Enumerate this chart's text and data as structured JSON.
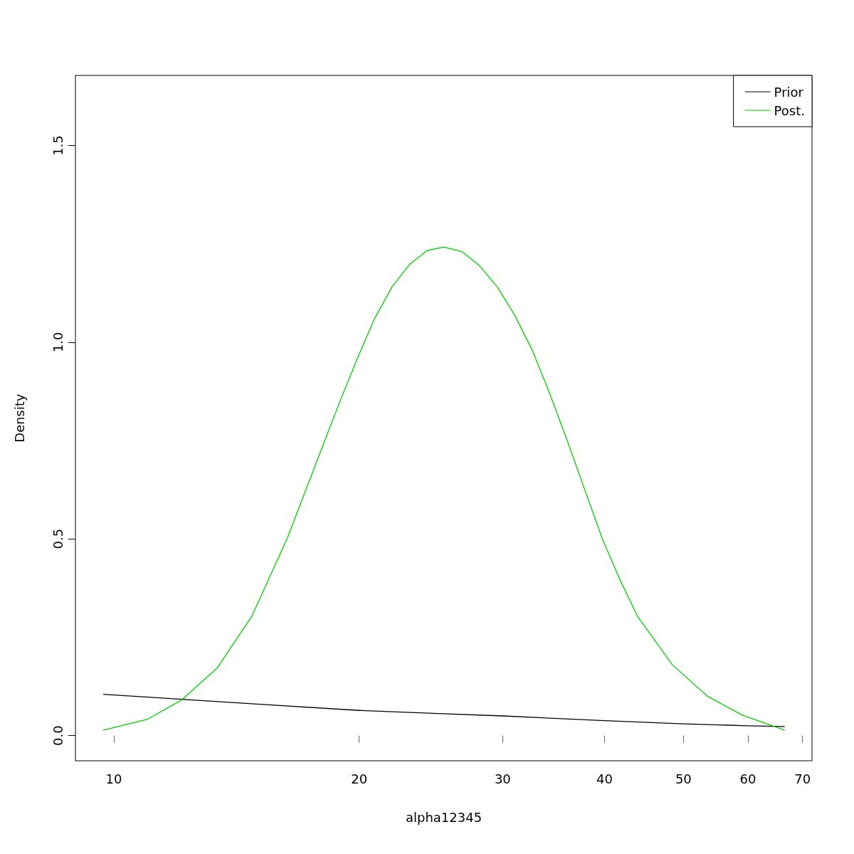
{
  "chart_data": {
    "type": "line",
    "xlabel": "alpha12345",
    "ylabel": "Density",
    "xlim": [
      8.97,
      71.9
    ],
    "xticks": [
      10,
      20,
      30,
      40,
      50,
      60,
      70
    ],
    "ylim": [
      -0.064,
      1.678
    ],
    "yticks": [
      {
        "value": 0,
        "label": "0.0"
      },
      0.5,
      {
        "value": 1,
        "label": "1.0"
      },
      1.5
    ],
    "log": "x",
    "grid": false,
    "legend": "top right",
    "marker": "none",
    "line_style": "solid",
    "series": [
      {
        "name": "Prior",
        "color": "#000000",
        "x": [
          9.71,
          12.4,
          15,
          20,
          25,
          30,
          40,
          50,
          60,
          66.5
        ],
        "values": [
          0.105,
          0.091,
          0.08,
          0.064,
          0.056,
          0.05,
          0.038,
          0.03,
          0.025,
          0.023
        ]
      },
      {
        "name": "Post.",
        "color": "#00cd00",
        "x": [
          9.71,
          10.98,
          12.12,
          13.38,
          14.77,
          16.31,
          17.14,
          18.0,
          18.92,
          19.88,
          20.89,
          21.95,
          23.07,
          24.24,
          25.4,
          26.75,
          28.11,
          29.53,
          31.03,
          32.61,
          34.26,
          36.01,
          37.83,
          39.76,
          41.77,
          43.89,
          48.45,
          53.5,
          59.06,
          66.5
        ],
        "values": [
          0.014,
          0.041,
          0.091,
          0.171,
          0.304,
          0.5,
          0.616,
          0.731,
          0.847,
          0.957,
          1.06,
          1.141,
          1.198,
          1.233,
          1.242,
          1.23,
          1.194,
          1.141,
          1.069,
          0.98,
          0.87,
          0.749,
          0.625,
          0.5,
          0.397,
          0.304,
          0.18,
          0.1,
          0.052,
          0.014
        ]
      }
    ]
  }
}
